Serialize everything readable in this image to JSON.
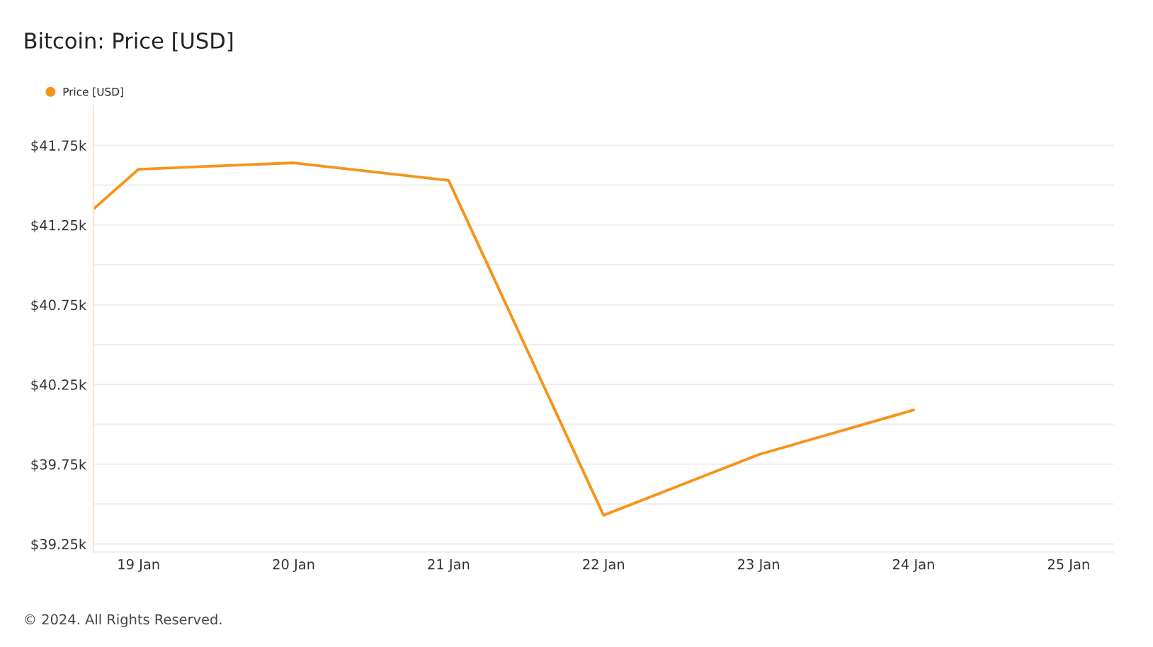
{
  "chart_data": {
    "type": "line",
    "title": "Bitcoin: Price [USD]",
    "x": [
      "2024-01-18T17:00",
      "2024-01-19",
      "2024-01-20",
      "2024-01-21",
      "2024-01-22",
      "2024-01-23",
      "2024-01-24"
    ],
    "series": [
      {
        "name": "Price [USD]",
        "color": "#f7931a",
        "values": [
          41.35,
          41.6,
          41.64,
          41.53,
          39.43,
          39.81,
          40.09
        ]
      }
    ],
    "xlim": [
      "2024-01-18T17:00",
      "2024-01-25T07:00"
    ],
    "xticks": [
      {
        "value": "2024-01-19",
        "label": "19 Jan"
      },
      {
        "value": "2024-01-20",
        "label": "20 Jan"
      },
      {
        "value": "2024-01-21",
        "label": "21 Jan"
      },
      {
        "value": "2024-01-22",
        "label": "22 Jan"
      },
      {
        "value": "2024-01-23",
        "label": "23 Jan"
      },
      {
        "value": "2024-01-24",
        "label": "24 Jan"
      },
      {
        "value": "2024-01-25",
        "label": "25 Jan"
      }
    ],
    "ylim": [
      39.2,
      42.0
    ],
    "yticks": [
      {
        "value": 39.25,
        "label": "$39.25k"
      },
      {
        "value": 39.5,
        "label": null
      },
      {
        "value": 39.75,
        "label": "$39.75k"
      },
      {
        "value": 40.0,
        "label": null
      },
      {
        "value": 40.25,
        "label": "$40.25k"
      },
      {
        "value": 40.5,
        "label": null
      },
      {
        "value": 40.75,
        "label": "$40.75k"
      },
      {
        "value": 41.0,
        "label": null
      },
      {
        "value": 41.25,
        "label": "$41.25k"
      },
      {
        "value": 41.5,
        "label": null
      },
      {
        "value": 41.75,
        "label": "$41.75k"
      }
    ],
    "grid": "y",
    "legend": "top left",
    "marker": "none",
    "line_style": "solid",
    "annotations": [
      "© 2024. All Rights Reserved."
    ]
  }
}
